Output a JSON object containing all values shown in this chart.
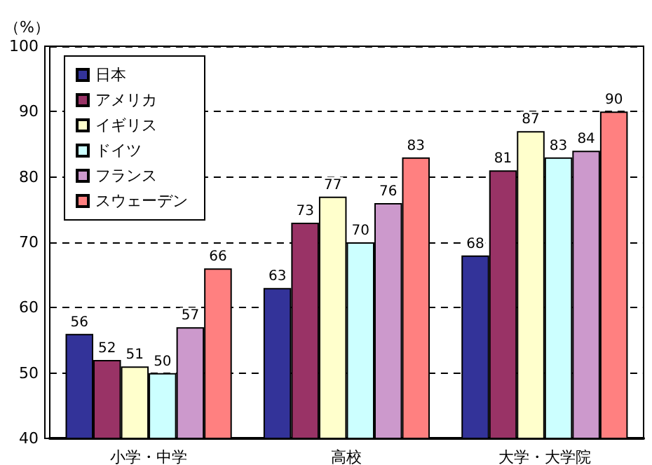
{
  "chart_data": {
    "type": "bar",
    "ylabel": "（%）",
    "categories": [
      "小学・中学",
      "高校",
      "大学・大学院"
    ],
    "series": [
      {
        "name": "日本",
        "color": "#333399",
        "values": [
          56,
          63,
          68
        ]
      },
      {
        "name": "アメリカ",
        "color": "#993366",
        "values": [
          52,
          73,
          81
        ]
      },
      {
        "name": "イギリス",
        "color": "#ffffcc",
        "values": [
          51,
          77,
          87
        ]
      },
      {
        "name": "ドイツ",
        "color": "#ccffff",
        "values": [
          50,
          70,
          83
        ]
      },
      {
        "name": "フランス",
        "color": "#cc99cc",
        "values": [
          57,
          76,
          84
        ]
      },
      {
        "name": "スウェーデン",
        "color": "#ff8080",
        "values": [
          66,
          83,
          90
        ]
      }
    ],
    "ylim": [
      40,
      100
    ],
    "yticks": [
      40,
      50,
      60,
      70,
      80,
      90,
      100
    ],
    "grid": "y",
    "legend": "top left",
    "data_labels": true
  }
}
